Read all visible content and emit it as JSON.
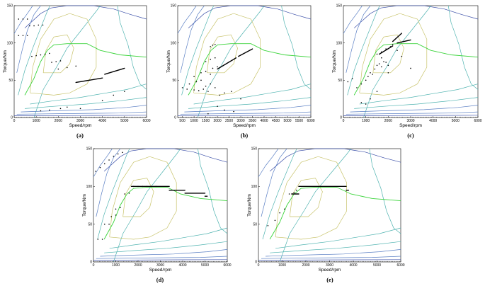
{
  "figure": {
    "description_labels": [
      "(a)",
      "(b)",
      "(c)",
      "(d)",
      "(e)"
    ]
  },
  "colors": {
    "contour_teal": "#4fb3b0",
    "contour_blue": "#5a7fc4",
    "contour_dark": "#3b4fa8",
    "contour_inner": "#c8c36a",
    "efficiency_line": "#3bd43b",
    "points": "#000000"
  },
  "chart_data": [
    {
      "id": "a",
      "type": "scatter",
      "label": "(a)",
      "xlabel": "Speed/rpm",
      "ylabel": "Torque/Nm",
      "xlim": [
        0,
        6000
      ],
      "ylim": [
        0,
        150
      ],
      "xticks": [
        0,
        1000,
        2000,
        3000,
        4000,
        5000,
        6000
      ],
      "yticks": [
        0,
        50,
        100,
        150
      ],
      "points": [
        [
          200,
          132
        ],
        [
          400,
          132
        ],
        [
          600,
          132
        ],
        [
          200,
          110
        ],
        [
          400,
          110
        ],
        [
          600,
          110
        ],
        [
          700,
          123
        ],
        [
          900,
          123
        ],
        [
          1100,
          124
        ],
        [
          1300,
          124
        ],
        [
          800,
          82
        ],
        [
          1000,
          83
        ],
        [
          1200,
          84
        ],
        [
          1400,
          85
        ],
        [
          1600,
          86
        ],
        [
          1700,
          74
        ],
        [
          1900,
          75
        ],
        [
          2100,
          76
        ],
        [
          2000,
          65
        ],
        [
          2400,
          67
        ],
        [
          2800,
          69
        ],
        [
          2100,
          12
        ],
        [
          2400,
          14
        ],
        [
          4000,
          23
        ],
        [
          4500,
          30
        ],
        [
          5000,
          35
        ],
        [
          1200,
          9
        ],
        [
          1600,
          10
        ],
        [
          3000,
          12
        ]
      ],
      "segments": [
        [
          [
            2800,
            47
          ],
          [
            4000,
            53
          ]
        ],
        [
          [
            4100,
            58
          ],
          [
            5000,
            66
          ]
        ]
      ]
    },
    {
      "id": "b",
      "type": "scatter",
      "label": "(b)",
      "xlabel": "Speed/rpm",
      "ylabel": "Torque/Nm",
      "xlim": [
        300,
        6000
      ],
      "ylim": [
        0,
        150
      ],
      "xticks": [
        500,
        1000,
        1500,
        2000,
        2500,
        3000,
        3500,
        4000,
        4500,
        5000,
        5500,
        6000
      ],
      "yticks": [
        0,
        50,
        100,
        150
      ],
      "points": [
        [
          500,
          40
        ],
        [
          700,
          38
        ],
        [
          1000,
          37
        ],
        [
          1200,
          36
        ],
        [
          1400,
          38
        ],
        [
          1600,
          35
        ],
        [
          800,
          45
        ],
        [
          1100,
          48
        ],
        [
          1300,
          50
        ],
        [
          1500,
          42
        ],
        [
          1700,
          45
        ],
        [
          1900,
          40
        ],
        [
          1000,
          55
        ],
        [
          1300,
          60
        ],
        [
          1500,
          62
        ],
        [
          1700,
          58
        ],
        [
          1800,
          66
        ],
        [
          2000,
          68
        ],
        [
          1500,
          75
        ],
        [
          1700,
          78
        ],
        [
          1900,
          80
        ],
        [
          1700,
          95
        ],
        [
          1800,
          97
        ],
        [
          1900,
          98
        ],
        [
          2100,
          30
        ],
        [
          2300,
          33
        ],
        [
          2600,
          35
        ],
        [
          2000,
          15
        ],
        [
          2300,
          10
        ],
        [
          2700,
          8
        ],
        [
          1600,
          5
        ],
        [
          3000,
          25
        ]
      ],
      "segments": [
        [
          [
            2000,
            65
          ],
          [
            2800,
            80
          ]
        ],
        [
          [
            2900,
            82
          ],
          [
            3500,
            92
          ]
        ]
      ]
    },
    {
      "id": "c",
      "type": "scatter",
      "label": "(c)",
      "xlabel": "Speed/rpm",
      "ylabel": "Torque/Nm",
      "xlim": [
        0,
        6000
      ],
      "ylim": [
        0,
        150
      ],
      "xticks": [
        0,
        1000,
        2000,
        3000,
        4000,
        5000,
        6000
      ],
      "yticks": [
        0,
        50,
        100,
        150
      ],
      "points": [
        [
          200,
          48
        ],
        [
          400,
          52
        ],
        [
          600,
          40
        ],
        [
          800,
          45
        ],
        [
          1000,
          50
        ],
        [
          1100,
          55
        ],
        [
          1200,
          60
        ],
        [
          1300,
          58
        ],
        [
          1400,
          65
        ],
        [
          1500,
          70
        ],
        [
          1600,
          72
        ],
        [
          1700,
          68
        ],
        [
          1800,
          75
        ],
        [
          1900,
          74
        ],
        [
          2000,
          70
        ],
        [
          1500,
          85
        ],
        [
          1700,
          88
        ],
        [
          1900,
          92
        ],
        [
          2100,
          95
        ],
        [
          2200,
          98
        ],
        [
          2400,
          90
        ],
        [
          2600,
          82
        ],
        [
          3000,
          66
        ],
        [
          800,
          20
        ],
        [
          1000,
          18
        ],
        [
          1200,
          25
        ],
        [
          1500,
          35
        ],
        [
          1700,
          80
        ],
        [
          2000,
          60
        ]
      ],
      "segments": [
        [
          [
            1600,
            85
          ],
          [
            2200,
            96
          ]
        ],
        [
          [
            2400,
            100
          ],
          [
            3000,
            104
          ]
        ],
        [
          [
            2200,
            102
          ],
          [
            2600,
            113
          ]
        ]
      ]
    },
    {
      "id": "d",
      "type": "scatter",
      "label": "(d)",
      "xlabel": "Speed/rpm",
      "ylabel": "Torque/Nm",
      "xlim": [
        0,
        6000
      ],
      "ylim": [
        0,
        150
      ],
      "xticks": [
        0,
        1000,
        2000,
        3000,
        4000,
        5000,
        6000
      ],
      "yticks": [
        0,
        50,
        100,
        150
      ],
      "points": [
        [
          100,
          120
        ],
        [
          300,
          125
        ],
        [
          500,
          130
        ],
        [
          700,
          135
        ],
        [
          900,
          140
        ],
        [
          1100,
          143
        ],
        [
          1300,
          145
        ],
        [
          200,
          30
        ],
        [
          400,
          30
        ],
        [
          500,
          50
        ],
        [
          700,
          50
        ],
        [
          800,
          60
        ],
        [
          1000,
          62
        ],
        [
          1000,
          70
        ],
        [
          1200,
          72
        ],
        [
          1400,
          90
        ],
        [
          1600,
          91
        ],
        [
          1800,
          100
        ],
        [
          2000,
          100
        ],
        [
          2200,
          100
        ],
        [
          2400,
          100
        ],
        [
          2600,
          100
        ],
        [
          2800,
          100
        ]
      ],
      "segments": [
        [
          [
            1700,
            100
          ],
          [
            3400,
            100
          ]
        ],
        [
          [
            3400,
            95
          ],
          [
            4100,
            95
          ]
        ],
        [
          [
            4100,
            91
          ],
          [
            5000,
            91
          ]
        ],
        [
          [
            5000,
            87
          ],
          [
            5100,
            87
          ]
        ]
      ]
    },
    {
      "id": "e",
      "type": "scatter",
      "label": "(e)",
      "xlabel": "Speed/rpm",
      "ylabel": "Torque/Nm",
      "xlim": [
        0,
        6000
      ],
      "ylim": [
        0,
        150
      ],
      "xticks": [
        0,
        1000,
        2000,
        3000,
        4000,
        5000,
        6000
      ],
      "yticks": [
        0,
        50,
        100,
        150
      ],
      "points": [
        [
          400,
          48
        ],
        [
          700,
          55
        ],
        [
          900,
          65
        ],
        [
          1100,
          70
        ],
        [
          1300,
          90
        ],
        [
          1500,
          92
        ],
        [
          1600,
          95
        ]
      ],
      "segments": [
        [
          [
            1400,
            90
          ],
          [
            1700,
            90
          ]
        ],
        [
          [
            1700,
            100
          ],
          [
            3700,
            100
          ]
        ],
        [
          [
            3700,
            95
          ],
          [
            3800,
            95
          ]
        ]
      ]
    }
  ]
}
